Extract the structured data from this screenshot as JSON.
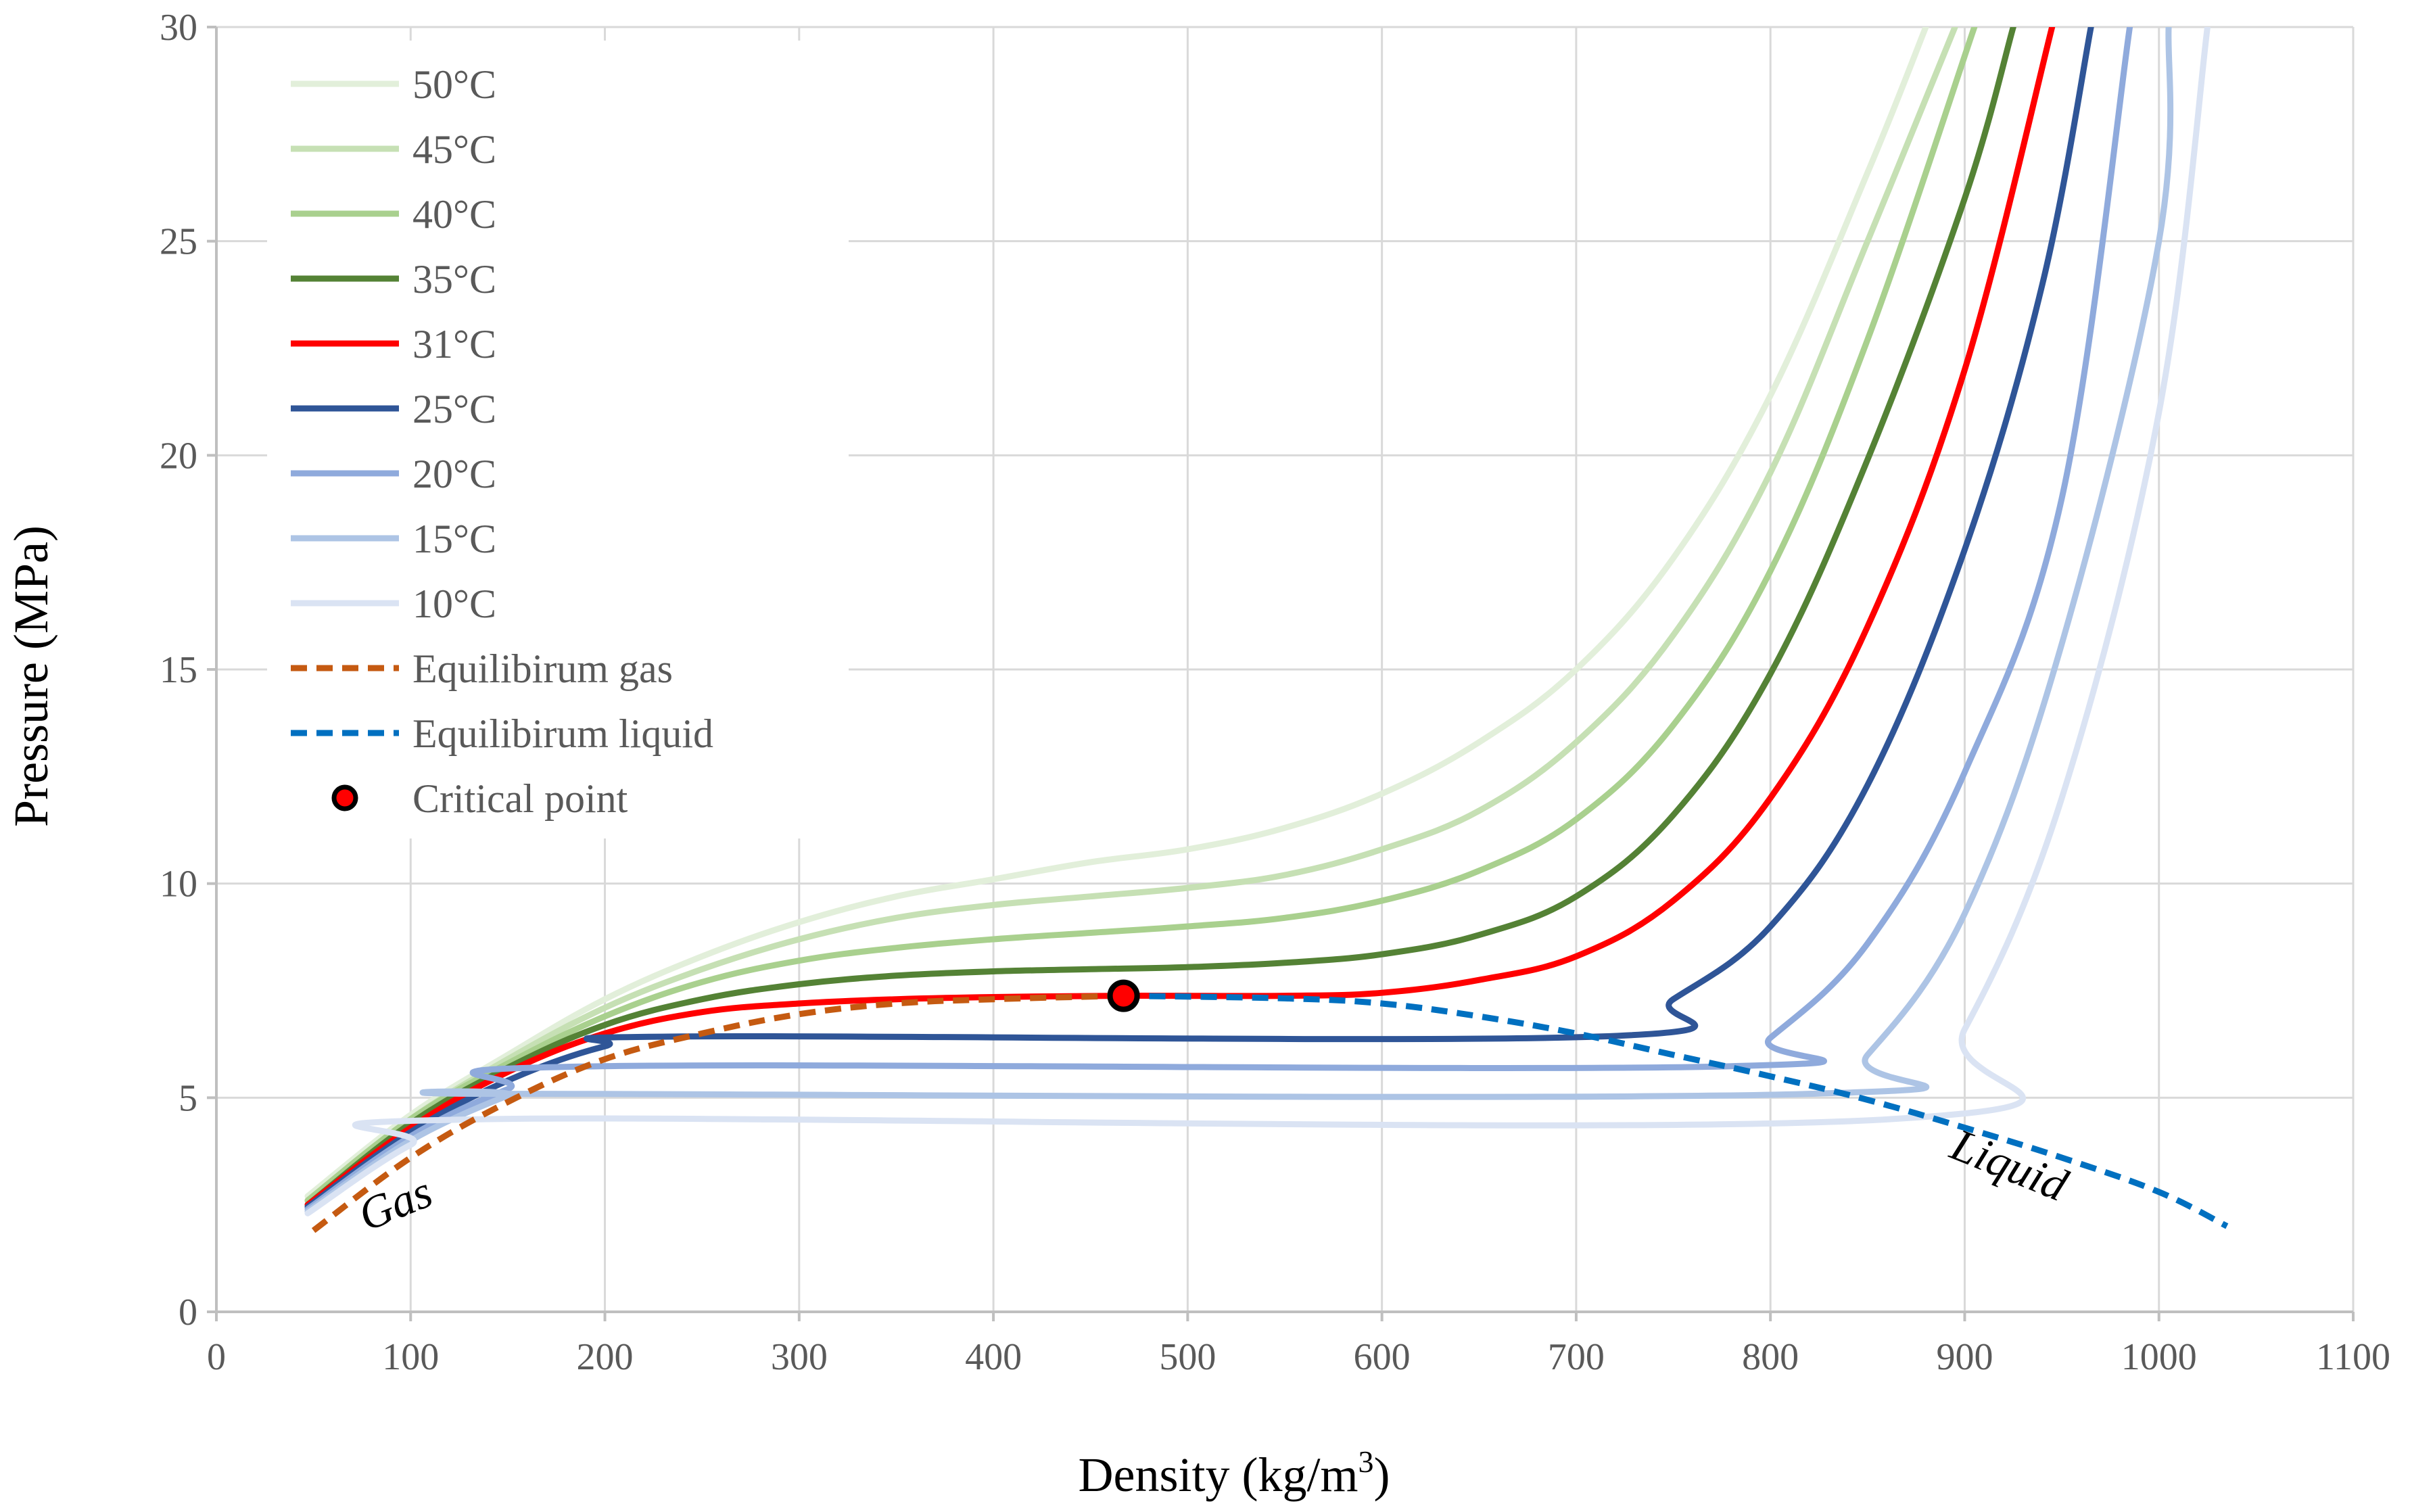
{
  "chart_data": {
    "type": "line",
    "xlabel": "Density  (kg/m",
    "xlabel_sup": "3",
    "xlabel_end": ")",
    "ylabel": "Pressure (MPa)",
    "xlim": [
      0,
      1100
    ],
    "ylim": [
      0,
      30
    ],
    "x_ticks": [
      "0",
      "100",
      "200",
      "300",
      "400",
      "500",
      "600",
      "700",
      "800",
      "900",
      "1000",
      "1100"
    ],
    "y_ticks": [
      "0",
      "5",
      "10",
      "15",
      "20",
      "25",
      "30"
    ],
    "grid": true,
    "legend_position": "top-left",
    "annotations": [
      {
        "text": "Gas",
        "x": 95,
        "y": 2.2
      },
      {
        "text": "Liquid",
        "x": 920,
        "y": 3.1
      }
    ],
    "critical_point": {
      "name": "Critical point",
      "x": 467,
      "y": 7.38,
      "color": "#ff0000"
    },
    "series": [
      {
        "name": "50°C",
        "color": "#e2efda",
        "dash": false,
        "points": [
          [
            47,
            2.7
          ],
          [
            100,
            4.6
          ],
          [
            150,
            6.0
          ],
          [
            200,
            7.3
          ],
          [
            250,
            8.3
          ],
          [
            300,
            9.1
          ],
          [
            350,
            9.7
          ],
          [
            400,
            10.1
          ],
          [
            450,
            10.5
          ],
          [
            500,
            10.8
          ],
          [
            550,
            11.3
          ],
          [
            600,
            12.1
          ],
          [
            650,
            13.3
          ],
          [
            700,
            15.0
          ],
          [
            750,
            17.6
          ],
          [
            800,
            21.4
          ],
          [
            850,
            26.6
          ],
          [
            880,
            30.0
          ]
        ]
      },
      {
        "name": "45°C",
        "color": "#c6e0b4",
        "dash": false,
        "points": [
          [
            47,
            2.6
          ],
          [
            100,
            4.5
          ],
          [
            150,
            5.9
          ],
          [
            200,
            7.1
          ],
          [
            250,
            8.0
          ],
          [
            300,
            8.7
          ],
          [
            350,
            9.2
          ],
          [
            400,
            9.5
          ],
          [
            450,
            9.7
          ],
          [
            500,
            9.9
          ],
          [
            550,
            10.2
          ],
          [
            600,
            10.8
          ],
          [
            650,
            11.7
          ],
          [
            700,
            13.3
          ],
          [
            750,
            15.8
          ],
          [
            800,
            19.6
          ],
          [
            850,
            25.0
          ],
          [
            895,
            30.0
          ]
        ]
      },
      {
        "name": "40°C",
        "color": "#a9d08e",
        "dash": false,
        "points": [
          [
            47,
            2.6
          ],
          [
            100,
            4.5
          ],
          [
            150,
            5.8
          ],
          [
            200,
            6.9
          ],
          [
            250,
            7.7
          ],
          [
            300,
            8.2
          ],
          [
            350,
            8.5
          ],
          [
            400,
            8.7
          ],
          [
            450,
            8.85
          ],
          [
            500,
            9.0
          ],
          [
            550,
            9.2
          ],
          [
            600,
            9.6
          ],
          [
            650,
            10.3
          ],
          [
            700,
            11.5
          ],
          [
            750,
            13.7
          ],
          [
            800,
            17.3
          ],
          [
            850,
            22.7
          ],
          [
            905,
            30.0
          ]
        ]
      },
      {
        "name": "35°C",
        "color": "#548235",
        "dash": false,
        "points": [
          [
            47,
            2.5
          ],
          [
            100,
            4.4
          ],
          [
            150,
            5.7
          ],
          [
            200,
            6.7
          ],
          [
            250,
            7.3
          ],
          [
            300,
            7.65
          ],
          [
            350,
            7.85
          ],
          [
            400,
            7.95
          ],
          [
            450,
            8.0
          ],
          [
            500,
            8.05
          ],
          [
            550,
            8.15
          ],
          [
            600,
            8.35
          ],
          [
            650,
            8.8
          ],
          [
            700,
            9.7
          ],
          [
            750,
            11.6
          ],
          [
            800,
            14.9
          ],
          [
            850,
            19.9
          ],
          [
            900,
            26.0
          ],
          [
            925,
            30.0
          ]
        ]
      },
      {
        "name": "31°C",
        "color": "#ff0000",
        "dash": false,
        "points": [
          [
            47,
            2.5
          ],
          [
            100,
            4.3
          ],
          [
            150,
            5.6
          ],
          [
            200,
            6.5
          ],
          [
            250,
            7.0
          ],
          [
            300,
            7.2
          ],
          [
            350,
            7.3
          ],
          [
            400,
            7.35
          ],
          [
            467,
            7.38
          ],
          [
            550,
            7.38
          ],
          [
            600,
            7.45
          ],
          [
            650,
            7.75
          ],
          [
            700,
            8.3
          ],
          [
            750,
            9.6
          ],
          [
            800,
            12.0
          ],
          [
            850,
            16.0
          ],
          [
            900,
            22.0
          ],
          [
            945,
            30.0
          ]
        ]
      },
      {
        "name": "25°C",
        "color": "#2f5597",
        "dash": false,
        "points": [
          [
            47,
            2.45
          ],
          [
            100,
            4.2
          ],
          [
            150,
            5.4
          ],
          [
            200,
            6.2
          ],
          [
            240,
            6.43
          ],
          [
            713,
            6.43
          ],
          [
            750,
            7.3
          ],
          [
            800,
            9.0
          ],
          [
            850,
            12.3
          ],
          [
            900,
            17.8
          ],
          [
            940,
            24.0
          ],
          [
            965,
            30.0
          ]
        ]
      },
      {
        "name": "20°C",
        "color": "#8faadc",
        "dash": false,
        "points": [
          [
            47,
            2.4
          ],
          [
            100,
            4.1
          ],
          [
            150,
            5.2
          ],
          [
            190,
            5.73
          ],
          [
            775,
            5.73
          ],
          [
            800,
            6.4
          ],
          [
            850,
            8.6
          ],
          [
            900,
            12.6
          ],
          [
            950,
            19.0
          ],
          [
            985,
            30.0
          ]
        ]
      },
      {
        "name": "15°C",
        "color": "#adc4e5",
        "dash": false,
        "points": [
          [
            47,
            2.35
          ],
          [
            100,
            4.0
          ],
          [
            150,
            5.05
          ],
          [
            160,
            5.09
          ],
          [
            820,
            5.09
          ],
          [
            850,
            6.0
          ],
          [
            900,
            9.3
          ],
          [
            950,
            15.6
          ],
          [
            1000,
            25.0
          ],
          [
            1005,
            30.0
          ]
        ]
      },
      {
        "name": "10°C",
        "color": "#dae3f3",
        "dash": false,
        "points": [
          [
            47,
            2.3
          ],
          [
            100,
            3.9
          ],
          [
            140,
            4.5
          ],
          [
            862,
            4.5
          ],
          [
            900,
            6.6
          ],
          [
            950,
            12.0
          ],
          [
            1000,
            21.0
          ],
          [
            1025,
            30.0
          ]
        ]
      },
      {
        "name": "Equilibirum gas",
        "color": "#c55a11",
        "dash": true,
        "points": [
          [
            50,
            1.9
          ],
          [
            100,
            3.6
          ],
          [
            150,
            4.9
          ],
          [
            200,
            5.9
          ],
          [
            250,
            6.5
          ],
          [
            300,
            6.95
          ],
          [
            350,
            7.2
          ],
          [
            400,
            7.3
          ],
          [
            467,
            7.38
          ]
        ]
      },
      {
        "name": "Equilibirum liquid",
        "color": "#0070c0",
        "dash": true,
        "points": [
          [
            467,
            7.38
          ],
          [
            550,
            7.32
          ],
          [
            600,
            7.2
          ],
          [
            650,
            6.9
          ],
          [
            700,
            6.5
          ],
          [
            750,
            6.0
          ],
          [
            800,
            5.5
          ],
          [
            850,
            4.95
          ],
          [
            900,
            4.3
          ],
          [
            950,
            3.6
          ],
          [
            1000,
            2.8
          ],
          [
            1035,
            2.0
          ]
        ]
      }
    ]
  }
}
